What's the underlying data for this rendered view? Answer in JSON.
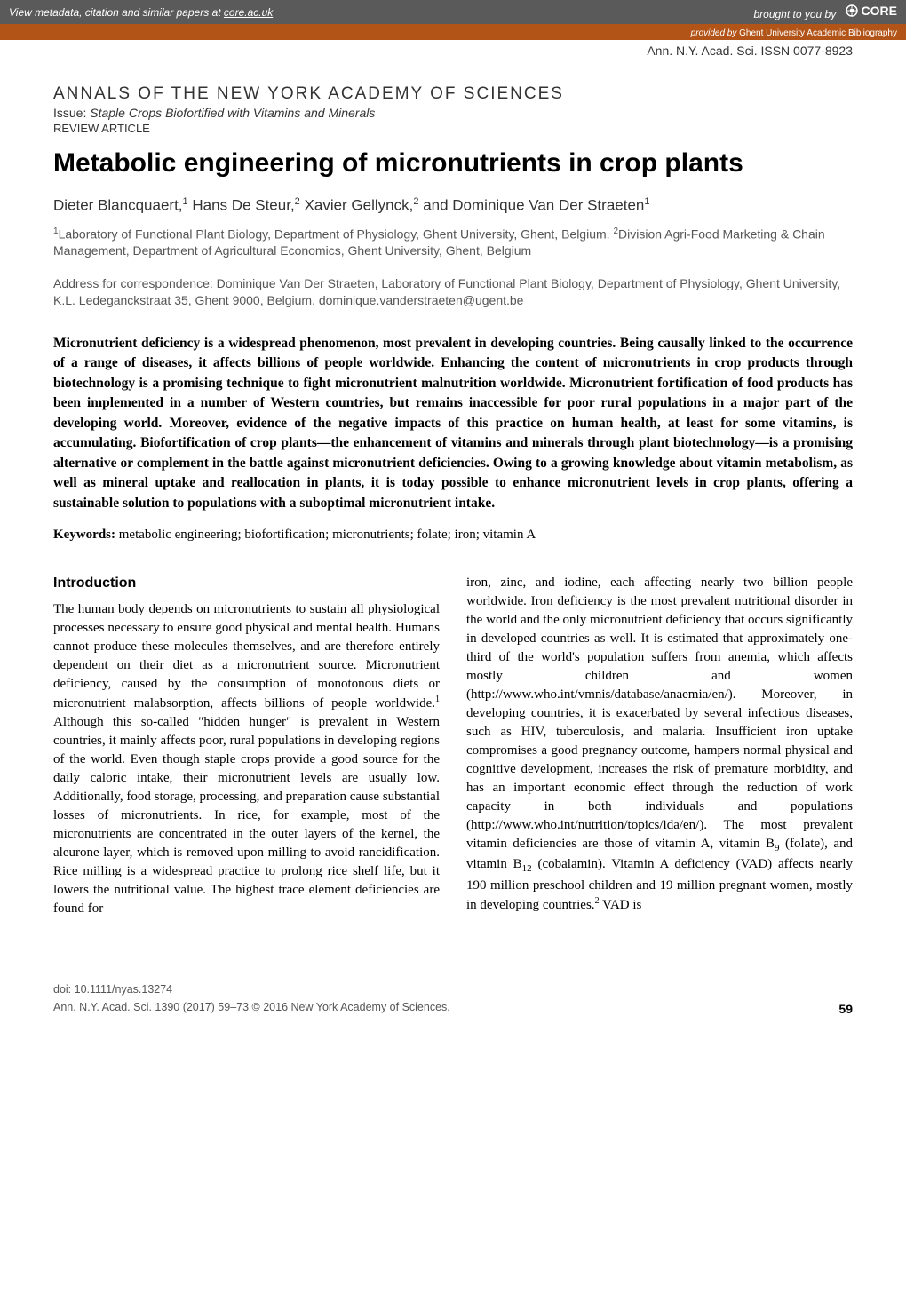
{
  "banner": {
    "left_text": "View metadata, citation and similar papers at ",
    "left_link": "core.ac.uk",
    "brought_by": "brought to you by ",
    "core_label": "CORE",
    "provided_prefix": "provided by ",
    "provider": "Ghent University Academic Bibliography"
  },
  "colors": {
    "banner_bg": "#5a5a5a",
    "orange_bg": "#b25418",
    "text_main": "#000000",
    "text_muted": "#555555"
  },
  "header": {
    "issn_line": "Ann. N.Y. Acad. Sci. ISSN 0077-8923",
    "journal_name": "ANNALS OF THE NEW YORK ACADEMY OF SCIENCES",
    "issue_label": "Issue:",
    "issue_title": "Staple Crops Biofortified with Vitamins and Minerals",
    "article_type": "REVIEW ARTICLE"
  },
  "article": {
    "title": "Metabolic engineering of micronutrients in crop plants",
    "authors_html": "Dieter Blancquaert,<sup>1</sup> Hans De Steur,<sup>2</sup> Xavier Gellynck,<sup>2</sup> and Dominique Van Der Straeten<sup>1</sup>",
    "affiliations_html": "<sup>1</sup>Laboratory of Functional Plant Biology, Department of Physiology, Ghent University, Ghent, Belgium. <sup>2</sup>Division Agri-Food Marketing & Chain Management, Department of Agricultural Economics, Ghent University, Ghent, Belgium",
    "correspondence": "Address for correspondence: Dominique Van Der Straeten, Laboratory of Functional Plant Biology, Department of Physiology, Ghent University, K.L. Ledeganckstraat 35, Ghent 9000, Belgium. dominique.vanderstraeten@ugent.be",
    "abstract": "Micronutrient deficiency is a widespread phenomenon, most prevalent in developing countries. Being causally linked to the occurrence of a range of diseases, it affects billions of people worldwide. Enhancing the content of micronutrients in crop products through biotechnology is a promising technique to fight micronutrient malnutrition worldwide. Micronutrient fortification of food products has been implemented in a number of Western countries, but remains inaccessible for poor rural populations in a major part of the developing world. Moreover, evidence of the negative impacts of this practice on human health, at least for some vitamins, is accumulating. Biofortification of crop plants—the enhancement of vitamins and minerals through plant biotechnology—is a promising alternative or complement in the battle against micronutrient deficiencies. Owing to a growing knowledge about vitamin metabolism, as well as mineral uptake and reallocation in plants, it is today possible to enhance micronutrient levels in crop plants, offering a sustainable solution to populations with a suboptimal micronutrient intake.",
    "keywords_label": "Keywords:",
    "keywords_text": " metabolic engineering; biofortification; micronutrients; folate; iron; vitamin A"
  },
  "body": {
    "intro_heading": "Introduction",
    "col1_html": "The human body depends on micronutrients to sustain all physiological processes necessary to ensure good physical and mental health. Humans cannot produce these molecules themselves, and are therefore entirely dependent on their diet as a micronutrient source. Micronutrient deficiency, caused by the consumption of monotonous diets or micronutrient malabsorption, affects billions of people worldwide.<sup>1</sup> Although this so-called \"hidden hunger\" is prevalent in Western countries, it mainly affects poor, rural populations in developing regions of the world. Even though staple crops provide a good source for the daily caloric intake, their micronutrient levels are usually low. Additionally, food storage, processing, and preparation cause substantial losses of micronutrients. In rice, for example, most of the micronutrients are concentrated in the outer layers of the kernel, the aleurone layer, which is removed upon milling to avoid rancidification. Rice milling is a widespread practice to prolong rice shelf life, but it lowers the nutritional value. The highest trace element deficiencies are found for",
    "col2_html": "iron, zinc, and iodine, each affecting nearly two billion people worldwide. Iron deficiency is the most prevalent nutritional disorder in the world and the only micronutrient deficiency that occurs significantly in developed countries as well. It is estimated that approximately one-third of the world's population suffers from anemia, which affects mostly children and women (http://www.who.int/vmnis/database/anaemia/en/). Moreover, in developing countries, it is exacerbated by several infectious diseases, such as HIV, tuberculosis, and malaria. Insufficient iron uptake compromises a good pregnancy outcome, hampers normal physical and cognitive development, increases the risk of premature morbidity, and has an important economic effect through the reduction of work capacity in both individuals and populations (http://www.who.int/nutrition/topics/ida/en/). The most prevalent vitamin deficiencies are those of vitamin A, vitamin B<span class=\"sub9\">9</span> (folate), and vitamin B<span class=\"sub12\">12</span> (cobalamin). Vitamin A deficiency (VAD) affects nearly 190 million preschool children and 19 million pregnant women, mostly in developing countries.<sup>2</sup> VAD is"
  },
  "footer": {
    "doi": "doi: 10.1111/nyas.13274",
    "citation": "Ann. N.Y. Acad. Sci. 1390 (2017) 59–73 © 2016 New York Academy of Sciences.",
    "page": "59"
  }
}
